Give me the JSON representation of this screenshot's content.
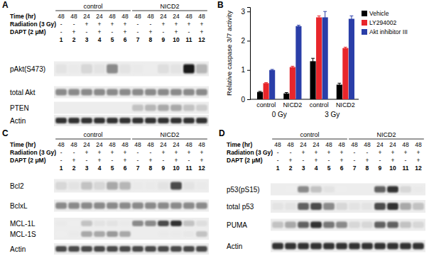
{
  "chart_data": {
    "panel": "B",
    "type": "bar",
    "categories": [
      "control",
      "NICD2",
      "control",
      "NICD2"
    ],
    "group_labels": [
      "0 Gy",
      "3 Gy"
    ],
    "ylabel": "Relative caspase 3/7 activity",
    "ylim": [
      0,
      3.15
    ],
    "yticks": [
      0,
      1,
      2,
      3
    ],
    "legend": "right",
    "series": [
      {
        "name": "Vehicle",
        "color": "#000000",
        "values": [
          0.25,
          0.2,
          1.3,
          0.5
        ],
        "errors": [
          0.02,
          0.03,
          0.1,
          0.05
        ]
      },
      {
        "name": "LY294002",
        "color": "#e8262b",
        "values": [
          0.55,
          1.1,
          2.8,
          1.75
        ],
        "errors": [
          0.02,
          0.03,
          0.05,
          0.03
        ]
      },
      {
        "name": "Akt inhibitor III",
        "color": "#2a3ea8",
        "values": [
          1.0,
          2.5,
          2.8,
          2.75
        ],
        "errors": [
          0.02,
          0.03,
          0.2,
          0.1
        ]
      }
    ]
  },
  "blots": [
    {
      "panel": "A",
      "groups": [
        "control",
        "NICD2"
      ],
      "header_labels": [
        "Time (hr)",
        "Radiation (3 Gy)",
        "DAPT (2 μM)"
      ],
      "time": [
        48,
        48,
        24,
        24,
        48,
        48,
        48,
        48,
        24,
        24,
        48,
        48
      ],
      "radiation": [
        "-",
        "-",
        "+",
        "+",
        "+",
        "+",
        "-",
        "-",
        "+",
        "+",
        "+",
        "+"
      ],
      "dapt": [
        "-",
        "+",
        "-",
        "+",
        "-",
        "+",
        "-",
        "+",
        "-",
        "+",
        "-",
        "+"
      ],
      "lanes": [
        1,
        2,
        3,
        4,
        5,
        6,
        7,
        8,
        9,
        10,
        11,
        12
      ],
      "rows": [
        {
          "label": "pAkt(S473)",
          "bands": [
            0.3,
            0.2,
            0.4,
            0.3,
            0.7,
            0.3,
            0.2,
            0.15,
            0.35,
            0.3,
            0.95,
            0.55
          ]
        },
        {
          "label": "total Akt",
          "bands": [
            0.7,
            0.7,
            0.7,
            0.7,
            0.7,
            0.7,
            0.7,
            0.7,
            0.7,
            0.7,
            0.7,
            0.7
          ]
        },
        {
          "label": "PTEN",
          "bands": [
            0,
            0,
            0,
            0,
            0,
            0,
            0.5,
            0.55,
            0.6,
            0.6,
            0.5,
            0.45
          ]
        },
        {
          "label": "Actin",
          "bands": [
            0.9,
            0.9,
            0.9,
            0.9,
            0.9,
            0.9,
            0.9,
            0.9,
            0.9,
            0.9,
            0.9,
            0.9
          ]
        }
      ]
    },
    {
      "panel": "C",
      "groups": [
        "control",
        "NICD2"
      ],
      "header_labels": [
        "Time (hr)",
        "Radiation (3 Gy)",
        "DAPT (2 μM)"
      ],
      "time": [
        48,
        48,
        24,
        24,
        48,
        48,
        48,
        48,
        24,
        24,
        48,
        48
      ],
      "radiation": [
        "-",
        "-",
        "+",
        "+",
        "+",
        "+",
        "-",
        "-",
        "+",
        "+",
        "+",
        "+"
      ],
      "dapt": [
        "-",
        "+",
        "-",
        "+",
        "-",
        "+",
        "-",
        "+",
        "-",
        "+",
        "-",
        "+"
      ],
      "lanes": [
        1,
        2,
        3,
        4,
        5,
        6,
        7,
        8,
        9,
        10,
        11,
        12
      ],
      "rows": [
        {
          "label": "Bcl2",
          "bands": [
            0.4,
            0.3,
            0.5,
            0.4,
            0.6,
            0.55,
            0.2,
            0.2,
            0.3,
            0.85,
            0.3,
            0.2
          ]
        },
        {
          "label": "BclxL",
          "bands": [
            0.7,
            0.7,
            0.7,
            0.7,
            0.7,
            0.7,
            0.7,
            0.7,
            0.7,
            0.7,
            0.7,
            0.7
          ]
        },
        {
          "label": "MCL-1L",
          "bands": [
            0.2,
            0.1,
            0.5,
            0.3,
            0.3,
            0.2,
            0.7,
            0.7,
            0.85,
            0.9,
            0.5,
            0.35
          ]
        },
        {
          "label": "MCL-1S",
          "bands": [
            0.1,
            0.2,
            0.6,
            0.6,
            0.65,
            0.6,
            0.15,
            0.15,
            0.2,
            0.2,
            0.25,
            0.5
          ]
        },
        {
          "label": "Actin",
          "bands": [
            0.85,
            0.85,
            0.85,
            0.85,
            0.85,
            0.85,
            0.85,
            0.85,
            0.85,
            0.85,
            0.85,
            0.85
          ]
        }
      ]
    },
    {
      "panel": "D",
      "groups": [
        "control",
        "NICD2"
      ],
      "header_labels": [
        "Time (hr)",
        "Radiation (3 Gy)",
        "DAPT (2 μM)"
      ],
      "time": [
        48,
        48,
        24,
        24,
        48,
        48,
        48,
        48,
        24,
        24,
        48,
        48
      ],
      "radiation": [
        "-",
        "-",
        "+",
        "+",
        "+",
        "+",
        "-",
        "-",
        "+",
        "+",
        "+",
        "+"
      ],
      "dapt": [
        "-",
        "+",
        "-",
        "+",
        "-",
        "+",
        "-",
        "+",
        "-",
        "+",
        "-",
        "+"
      ],
      "lanes": [
        1,
        2,
        3,
        4,
        5,
        6,
        7,
        8,
        9,
        10,
        11,
        12
      ],
      "rows": [
        {
          "label": "p53(pS15)",
          "bands": [
            0,
            0.05,
            0.7,
            0.5,
            0.3,
            0.1,
            0,
            0,
            0.8,
            0.9,
            0.4,
            0.2
          ]
        },
        {
          "label": "total p53",
          "bands": [
            0.3,
            0.3,
            0.8,
            0.85,
            0.7,
            0.4,
            0.3,
            0.3,
            0.85,
            0.9,
            0.6,
            0.5
          ]
        },
        {
          "label": "PUMA",
          "bands": [
            0.5,
            0.6,
            0.8,
            0.9,
            0.75,
            0.7,
            0.4,
            0.4,
            0.8,
            0.8,
            0.5,
            0.4
          ]
        },
        {
          "label": "Actin",
          "bands": [
            0.9,
            0.9,
            0.9,
            0.9,
            0.9,
            0.9,
            0.9,
            0.9,
            0.9,
            0.9,
            0.9,
            0.9
          ]
        }
      ]
    }
  ]
}
